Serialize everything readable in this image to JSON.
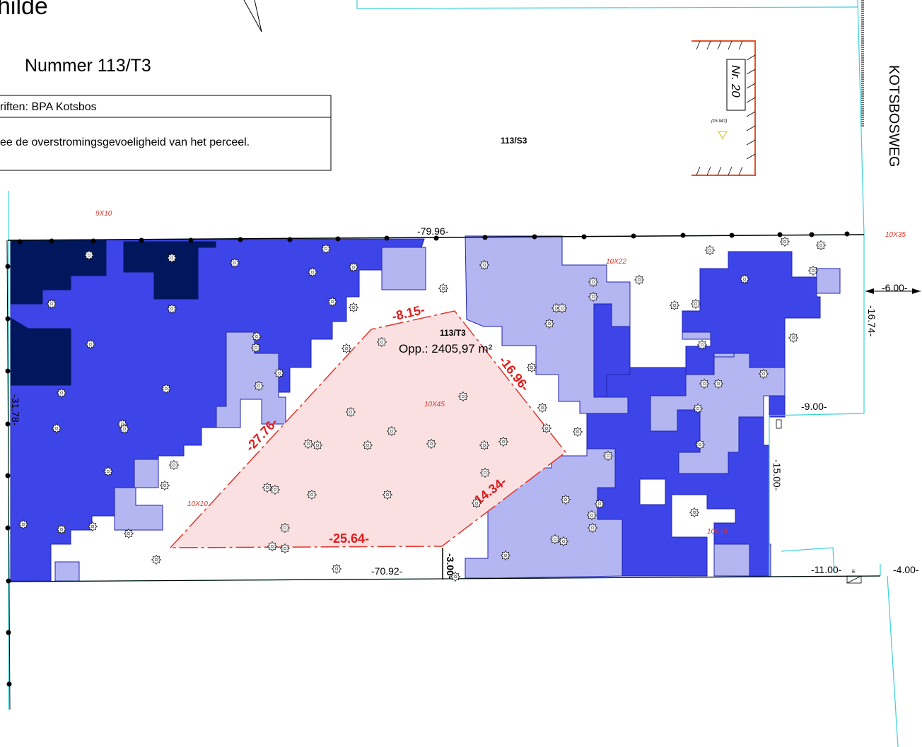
{
  "header": {
    "title": "hilde",
    "plot_number": "Nummer 113/T3"
  },
  "info_box": {
    "line1": "riften: BPA Kotsbos",
    "line2": "ee de overstromingsgevoeligheid van het perceel."
  },
  "street": "KOTSBOSWEG",
  "parcels": {
    "neighbour": "113/S3",
    "subject": "113/T3",
    "area": "Opp.: 2405,97 m²"
  },
  "house": {
    "label": "Nr. 20",
    "elevation": "(15.947)"
  },
  "build_zone_dimensions": [
    "-8.15-",
    "-16.96-",
    "-14.34-",
    "-25.64-",
    "-27.76-"
  ],
  "site_dimensions": {
    "top": "-79.96-",
    "bottom": "-70.92-",
    "left": "-31.78-",
    "setback_right": "-6.00-",
    "right_a": "-16.74-",
    "right_b": "-9.00-",
    "right_c": "-15.00-",
    "bottom_right": "-11.00-",
    "far_right": "-4.00-",
    "gap": "-3.00-"
  },
  "tree_labels": [
    "9X10",
    "10X22",
    "10X35",
    "10X45",
    "10X10",
    "10X15"
  ],
  "legend_colors": {
    "flood_very_high": "#00175e",
    "flood_high": "#3d44e8",
    "flood_low": "#b4b6f2",
    "build_zone": "#fbe0e2",
    "build_zone_outline": "#e0352a",
    "parcel_line": "#37d1dc"
  }
}
